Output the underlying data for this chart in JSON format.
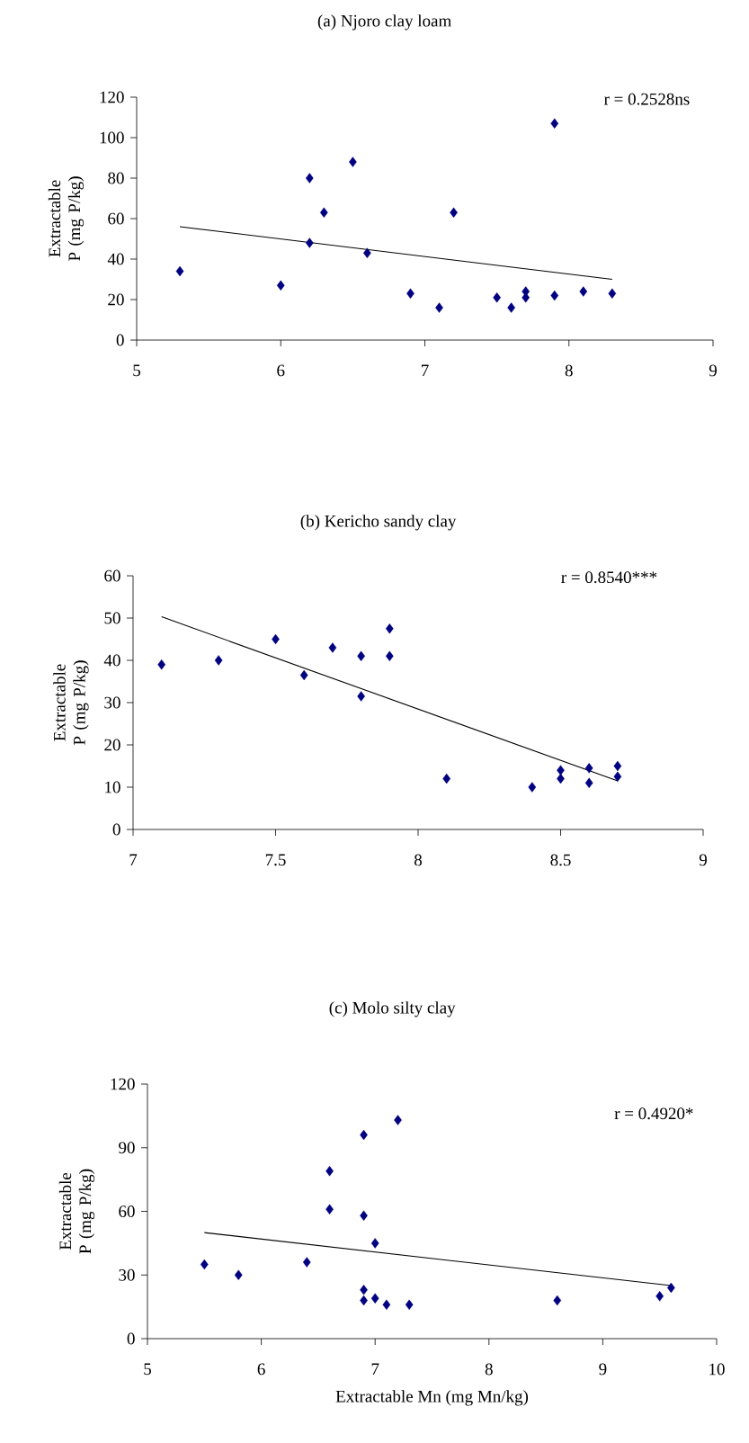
{
  "chart_data": [
    {
      "type": "scatter",
      "title": "(a) Njoro clay loam",
      "ylabel": "Extractable P (mg P/kg)",
      "xlim": [
        5,
        9
      ],
      "xticks": [
        5,
        6,
        7,
        8,
        9
      ],
      "ylim": [
        0,
        120
      ],
      "yticks": [
        0,
        20,
        40,
        60,
        80,
        100,
        120
      ],
      "annotations": [
        "r = 0.2528ns"
      ],
      "series": [
        {
          "color": "#000080",
          "marker": "diamond",
          "x": [
            5.3,
            6.0,
            6.2,
            6.2,
            6.3,
            6.5,
            6.6,
            6.9,
            7.1,
            7.2,
            7.5,
            7.6,
            7.7,
            7.7,
            7.9,
            7.9,
            8.1,
            8.3
          ],
          "values": [
            34,
            27,
            80,
            48,
            63,
            88,
            43,
            23,
            16,
            63,
            21,
            16,
            24,
            21,
            107,
            22,
            24,
            23
          ]
        },
        {
          "type": "line",
          "color": "#000000",
          "x": [
            5.3,
            8.3
          ],
          "values": [
            56,
            30
          ]
        }
      ]
    },
    {
      "type": "scatter",
      "title": "(b) Kericho sandy clay",
      "ylabel": "Extractable P (mg P/kg)",
      "xlim": [
        7,
        9
      ],
      "xticks": [
        7,
        7.5,
        8,
        8.5,
        9
      ],
      "ylim": [
        0,
        60
      ],
      "yticks": [
        0,
        10,
        20,
        30,
        40,
        50,
        60
      ],
      "annotations": [
        "r = 0.8540***"
      ],
      "series": [
        {
          "color": "#000080",
          "marker": "diamond",
          "x": [
            7.1,
            7.3,
            7.5,
            7.6,
            7.7,
            7.8,
            7.8,
            7.9,
            7.9,
            8.1,
            8.4,
            8.5,
            8.5,
            8.6,
            8.6,
            8.7,
            8.7
          ],
          "values": [
            39,
            40,
            45,
            36.5,
            43,
            41,
            31.5,
            47.5,
            41,
            12,
            10,
            14,
            12,
            14.5,
            11,
            15,
            12.5
          ]
        },
        {
          "type": "line",
          "color": "#000000",
          "x": [
            7.1,
            8.7
          ],
          "values": [
            50.3,
            11.5
          ]
        }
      ]
    },
    {
      "type": "scatter",
      "title": "(c) Molo silty clay",
      "ylabel": "Extractable P (mg P/kg)",
      "xlabel": "Extractable Mn (mg Mn/kg)",
      "xlim": [
        5,
        10
      ],
      "xticks": [
        5,
        6,
        7,
        8,
        9,
        10
      ],
      "ylim": [
        0,
        120
      ],
      "yticks": [
        0,
        30,
        60,
        90,
        120
      ],
      "annotations": [
        "r = 0.4920*"
      ],
      "series": [
        {
          "color": "#000080",
          "marker": "diamond",
          "x": [
            5.5,
            5.8,
            6.4,
            6.6,
            6.6,
            6.9,
            6.9,
            6.9,
            6.9,
            7.0,
            7.0,
            7.1,
            7.2,
            7.3,
            8.6,
            9.5,
            9.6
          ],
          "values": [
            35,
            30,
            36,
            79,
            61,
            96,
            58,
            23,
            18,
            45,
            19,
            16,
            103,
            16,
            18,
            20,
            24
          ]
        },
        {
          "type": "line",
          "color": "#000000",
          "x": [
            5.5,
            9.6
          ],
          "values": [
            50,
            25
          ]
        }
      ]
    }
  ]
}
